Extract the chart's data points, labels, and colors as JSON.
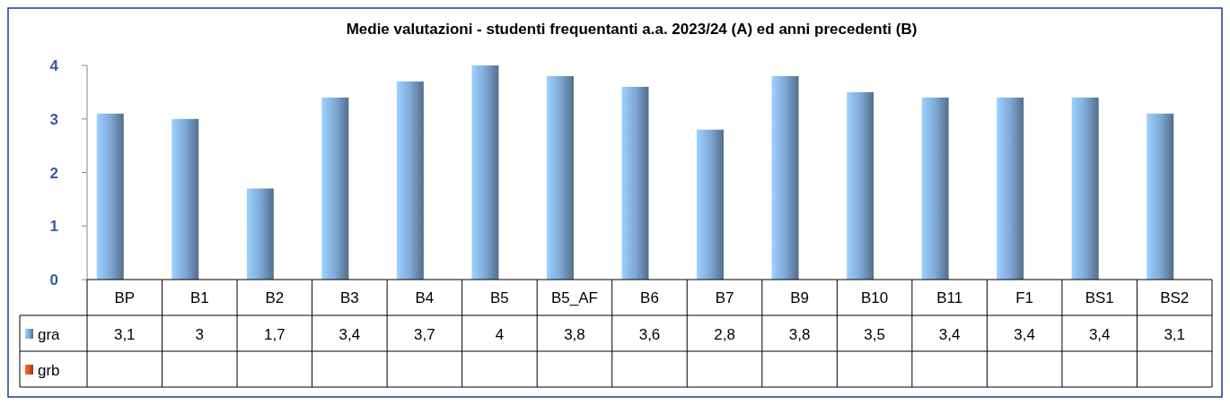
{
  "chart_data": {
    "type": "bar",
    "title": "Medie valutazioni - studenti frequentanti  a.a. 2023/24 (A) ed anni precedenti (B)",
    "categories": [
      "BP",
      "B1",
      "B2",
      "B3",
      "B4",
      "B5",
      "B5_AF",
      "B6",
      "B7",
      "B9",
      "B10",
      "B11",
      "F1",
      "BS1",
      "BS2"
    ],
    "series": [
      {
        "name": "gra",
        "color": "#7fa9d6",
        "values": [
          3.1,
          3,
          1.7,
          3.4,
          3.7,
          4,
          3.8,
          3.6,
          2.8,
          3.8,
          3.5,
          3.4,
          3.4,
          3.4,
          3.1
        ],
        "value_labels": [
          "3,1",
          "3",
          "1,7",
          "3,4",
          "3,7",
          "4",
          "3,8",
          "3,6",
          "2,8",
          "3,8",
          "3,5",
          "3,4",
          "3,4",
          "3,4",
          "3,1"
        ]
      },
      {
        "name": "grb",
        "color": "#d9531e",
        "values": [
          null,
          null,
          null,
          null,
          null,
          null,
          null,
          null,
          null,
          null,
          null,
          null,
          null,
          null,
          null
        ],
        "value_labels": [
          null,
          null,
          null,
          null,
          null,
          null,
          null,
          null,
          null,
          null,
          null,
          null,
          null,
          null,
          null
        ]
      }
    ],
    "ylim": [
      0,
      4
    ],
    "yticks": [
      0,
      1,
      2,
      3,
      4
    ],
    "grid": false,
    "legend": "bottom"
  }
}
